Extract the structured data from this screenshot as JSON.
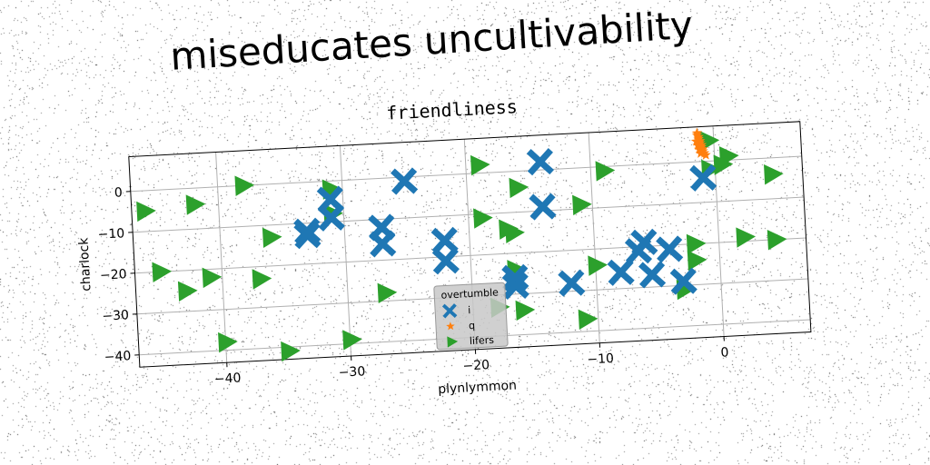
{
  "page_title": "miseducates uncultivability",
  "colors": {
    "blue_series": "#1f77b4",
    "orange_series": "#ff7f0e",
    "green_series": "#2ca02c",
    "grid": "#b0b0b0",
    "legend_bg": "#c8c8c8"
  },
  "chart_data": {
    "type": "scatter",
    "title": "friendliness",
    "xlabel": "plynlymmon",
    "ylabel": "charlock",
    "xlim": [
      -47,
      7
    ],
    "ylim": [
      -43,
      8.5
    ],
    "xticks": [
      -40,
      -30,
      -20,
      -10,
      0
    ],
    "yticks": [
      0,
      -10,
      -20,
      -30,
      -40
    ],
    "xtick_labels": [
      "−40",
      "−30",
      "−20",
      "−10",
      "0"
    ],
    "ytick_labels": [
      "0",
      "−10",
      "−20",
      "−30",
      "−40"
    ],
    "grid": true,
    "legend": {
      "title": "overtumble",
      "placement": "lower center",
      "entries": [
        {
          "label": "i",
          "marker": "x",
          "series": 0
        },
        {
          "label": "q",
          "marker": "star",
          "series": 1
        },
        {
          "label": "lifers",
          "marker": "triangle-right",
          "series": 2
        }
      ]
    },
    "series": [
      {
        "name": "i",
        "marker": "x",
        "color": "#1f77b4",
        "points": [
          [
            -25,
            -1
          ],
          [
            -31,
            -4.5
          ],
          [
            -14,
            2
          ],
          [
            -31,
            -9
          ],
          [
            -33,
            -12
          ],
          [
            -33,
            -13
          ],
          [
            -27,
            -12
          ],
          [
            -27,
            -16
          ],
          [
            -22,
            -16
          ],
          [
            -22,
            -21
          ],
          [
            -14,
            -9
          ],
          [
            -1,
            -4
          ],
          [
            -16.5,
            -26
          ],
          [
            -16.5,
            -28
          ],
          [
            -12,
            -28
          ],
          [
            -8,
            -26
          ],
          [
            -5.5,
            -27
          ],
          [
            -6.5,
            -21
          ],
          [
            -6,
            -19
          ],
          [
            -4,
            -21
          ],
          [
            -3,
            -29
          ]
        ]
      },
      {
        "name": "q",
        "marker": "star",
        "color": "#ff7f0e",
        "points": [
          [
            -1.3,
            7
          ],
          [
            -1.2,
            6
          ],
          [
            -1.1,
            5
          ],
          [
            -1.0,
            4
          ],
          [
            -0.9,
            3
          ],
          [
            -0.8,
            2
          ],
          [
            -0.7,
            1.5
          ],
          [
            -1.3,
            6.5
          ],
          [
            -1.2,
            5.5
          ],
          [
            -1.1,
            4.5
          ],
          [
            -1.0,
            3.5
          ],
          [
            -0.9,
            2.5
          ],
          [
            -1.4,
            5
          ],
          [
            -1.3,
            4
          ],
          [
            -1.2,
            3
          ],
          [
            -1.1,
            2
          ]
        ]
      },
      {
        "name": "lifers",
        "marker": "triangle-right",
        "color": "#2ca02c",
        "points": [
          [
            -46,
            -5
          ],
          [
            -42,
            -4
          ],
          [
            -38,
            0
          ],
          [
            -31,
            -2
          ],
          [
            -31,
            -8
          ],
          [
            -19,
            2
          ],
          [
            -16,
            -4
          ],
          [
            -11,
            -9
          ],
          [
            -9,
            -1
          ],
          [
            -0.5,
            5
          ],
          [
            0.5,
            -1
          ],
          [
            -0.5,
            -2
          ],
          [
            1,
            1
          ],
          [
            4.5,
            -4
          ],
          [
            -36,
            -13
          ],
          [
            -19,
            -11
          ],
          [
            -17,
            -14
          ],
          [
            -16.5,
            -15
          ],
          [
            -45,
            -20
          ],
          [
            -43,
            -25
          ],
          [
            -41,
            -22
          ],
          [
            -37,
            -23
          ],
          [
            -27,
            -28
          ],
          [
            -16.5,
            -24
          ],
          [
            -10,
            -24
          ],
          [
            -2,
            -20
          ],
          [
            -2,
            -24
          ],
          [
            2,
            -19
          ],
          [
            4.5,
            -20
          ],
          [
            -3,
            -31
          ],
          [
            -16,
            -34
          ],
          [
            -18,
            -33
          ],
          [
            -40,
            -38
          ],
          [
            -35,
            -41
          ],
          [
            -30,
            -39
          ],
          [
            -11,
            -37
          ]
        ]
      }
    ]
  }
}
